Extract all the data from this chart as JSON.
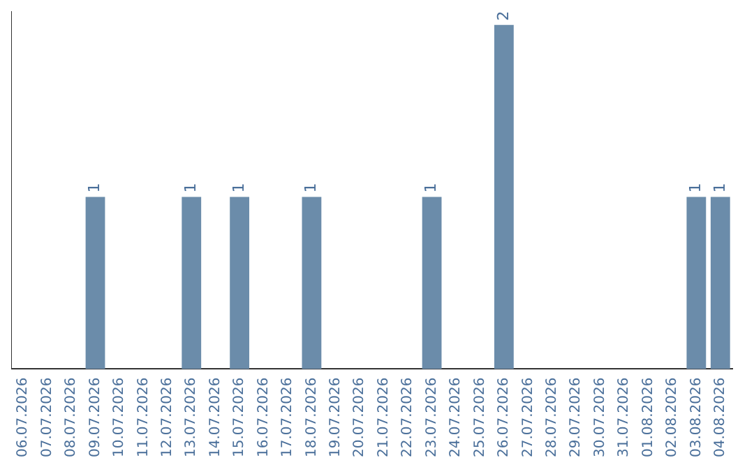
{
  "chart_data": {
    "type": "bar",
    "categories": [
      "06.07.2026",
      "07.07.2026",
      "08.07.2026",
      "09.07.2026",
      "10.07.2026",
      "11.07.2026",
      "12.07.2026",
      "13.07.2026",
      "14.07.2026",
      "15.07.2026",
      "16.07.2026",
      "17.07.2026",
      "18.07.2026",
      "19.07.2026",
      "20.07.2026",
      "21.07.2026",
      "22.07.2026",
      "23.07.2026",
      "24.07.2026",
      "25.07.2026",
      "26.07.2026",
      "27.07.2026",
      "28.07.2026",
      "29.07.2026",
      "30.07.2026",
      "31.07.2026",
      "01.08.2026",
      "02.08.2026",
      "03.08.2026",
      "04.08.2026"
    ],
    "values": [
      0,
      0,
      0,
      1,
      0,
      0,
      0,
      1,
      0,
      1,
      0,
      0,
      1,
      0,
      0,
      0,
      0,
      1,
      0,
      0,
      2,
      0,
      0,
      0,
      0,
      0,
      0,
      0,
      1,
      1
    ],
    "value_labels": [
      null,
      null,
      null,
      "1",
      null,
      null,
      null,
      "1",
      null,
      "1",
      null,
      null,
      "1",
      null,
      null,
      null,
      null,
      "1",
      null,
      null,
      "2",
      null,
      null,
      null,
      null,
      null,
      null,
      null,
      "1",
      "1"
    ],
    "color": "#6b8caa",
    "grid": false,
    "legend": false,
    "tick_labels": "x"
  }
}
